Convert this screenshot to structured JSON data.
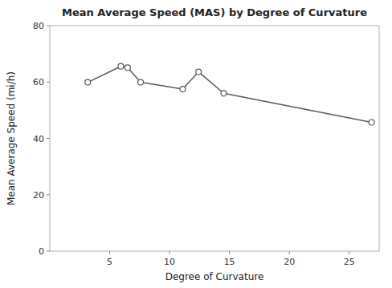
{
  "chart_data": {
    "type": "line",
    "title": "Mean Average Speed (MAS) by Degree of Curvature",
    "xlabel": "Degree of Curvature",
    "ylabel": "Mean Average Speed (mi/h)",
    "x": [
      3.17,
      5.93,
      6.5,
      7.58,
      11.1,
      12.42,
      14.52,
      26.87
    ],
    "values": [
      59.9,
      65.56,
      65.1,
      59.9,
      57.5,
      63.6,
      56.0,
      45.7
    ],
    "color": "#5a5a5a",
    "marker": "circle",
    "xlim": [
      0,
      27.5
    ],
    "ylim": [
      0,
      80
    ],
    "xticks": [
      5,
      10,
      15,
      20,
      25
    ],
    "yticks": [
      0,
      20,
      40,
      60,
      80
    ],
    "grid": false
  }
}
